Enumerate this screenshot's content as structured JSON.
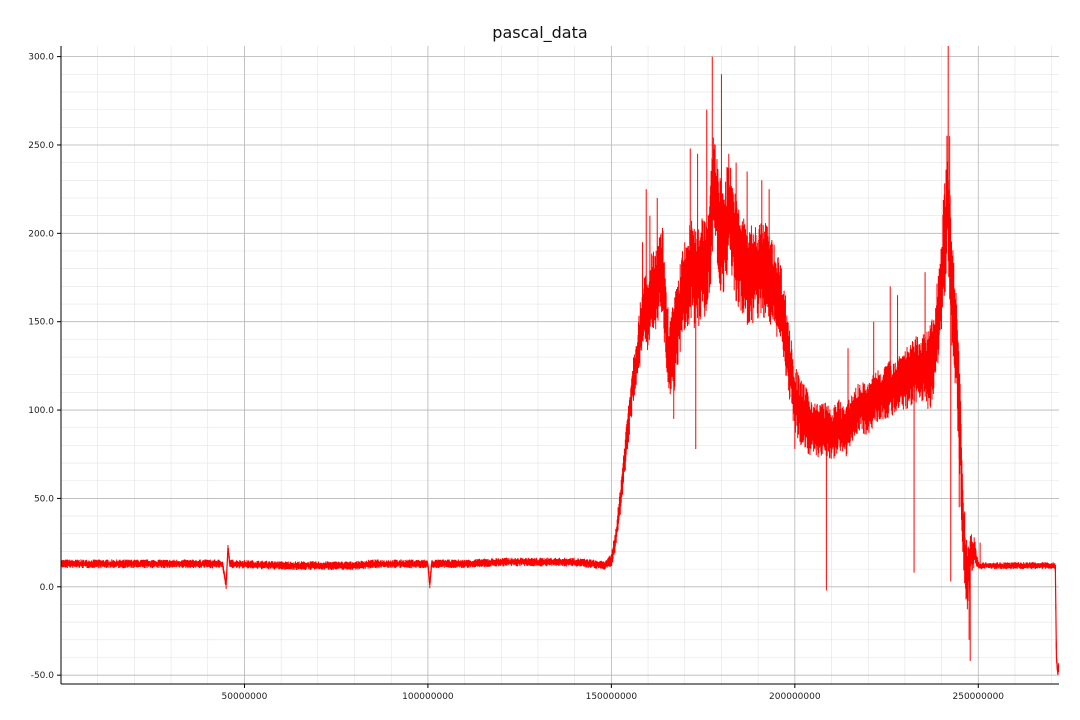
{
  "chart_data": {
    "type": "line",
    "title": "pascal_data",
    "xlabel": "",
    "ylabel": "",
    "xlim": [
      0,
      272000000
    ],
    "ylim": [
      -55,
      306
    ],
    "x_ticks": [
      50000000,
      100000000,
      150000000,
      200000000,
      250000000
    ],
    "x_tick_labels": [
      "50000000",
      "100000000",
      "150000000",
      "200000000",
      "250000000"
    ],
    "y_ticks": [
      -50,
      0,
      50,
      100,
      150,
      200,
      250,
      300
    ],
    "y_tick_labels": [
      "-50.0",
      "0.0",
      "50.0",
      "100.0",
      "150.0",
      "200.0",
      "250.0",
      "300.0"
    ],
    "grid": true,
    "minor_grid": true,
    "legend": "none",
    "series": [
      {
        "color": "#ff0000",
        "points": [
          [
            0,
            13
          ],
          [
            10000000,
            13
          ],
          [
            20000000,
            13
          ],
          [
            30000000,
            13
          ],
          [
            44000000,
            13
          ],
          [
            45000000,
            1
          ],
          [
            45500000,
            22
          ],
          [
            46000000,
            13
          ],
          [
            60000000,
            12
          ],
          [
            70000000,
            12
          ],
          [
            80000000,
            12
          ],
          [
            85000000,
            13
          ],
          [
            95000000,
            13
          ],
          [
            100000000,
            13
          ],
          [
            100500000,
            1
          ],
          [
            101000000,
            13
          ],
          [
            110000000,
            13
          ],
          [
            120000000,
            14
          ],
          [
            130000000,
            14
          ],
          [
            140000000,
            14
          ],
          [
            145000000,
            13
          ],
          [
            148000000,
            12
          ],
          [
            150000000,
            15
          ],
          [
            151000000,
            25
          ],
          [
            152000000,
            40
          ],
          [
            153000000,
            60
          ],
          [
            154000000,
            80
          ],
          [
            155000000,
            100
          ],
          [
            156000000,
            118
          ],
          [
            157000000,
            130
          ],
          [
            158000000,
            145
          ],
          [
            159000000,
            160
          ],
          [
            160000000,
            150
          ],
          [
            161000000,
            170
          ],
          [
            162000000,
            165
          ],
          [
            163000000,
            175
          ],
          [
            164000000,
            180
          ],
          [
            165000000,
            140
          ],
          [
            166000000,
            128
          ],
          [
            167000000,
            135
          ],
          [
            168000000,
            148
          ],
          [
            169000000,
            160
          ],
          [
            170000000,
            168
          ],
          [
            171000000,
            175
          ],
          [
            172000000,
            180
          ],
          [
            173000000,
            172
          ],
          [
            174000000,
            178
          ],
          [
            175000000,
            185
          ],
          [
            176000000,
            180
          ],
          [
            177000000,
            200
          ],
          [
            178000000,
            230
          ],
          [
            179000000,
            210
          ],
          [
            180000000,
            195
          ],
          [
            181000000,
            200
          ],
          [
            182000000,
            215
          ],
          [
            183000000,
            200
          ],
          [
            184000000,
            190
          ],
          [
            185000000,
            185
          ],
          [
            186000000,
            180
          ],
          [
            188000000,
            175
          ],
          [
            190000000,
            178
          ],
          [
            192000000,
            180
          ],
          [
            194000000,
            170
          ],
          [
            196000000,
            162
          ],
          [
            197000000,
            150
          ],
          [
            198000000,
            135
          ],
          [
            199000000,
            120
          ],
          [
            200000000,
            105
          ],
          [
            202000000,
            98
          ],
          [
            204000000,
            92
          ],
          [
            206000000,
            88
          ],
          [
            208000000,
            90
          ],
          [
            210000000,
            85
          ],
          [
            212000000,
            92
          ],
          [
            214000000,
            88
          ],
          [
            216000000,
            98
          ],
          [
            218000000,
            102
          ],
          [
            220000000,
            100
          ],
          [
            222000000,
            108
          ],
          [
            224000000,
            110
          ],
          [
            226000000,
            112
          ],
          [
            228000000,
            115
          ],
          [
            230000000,
            118
          ],
          [
            232000000,
            120
          ],
          [
            234000000,
            125
          ],
          [
            236000000,
            122
          ],
          [
            238000000,
            130
          ],
          [
            239000000,
            150
          ],
          [
            240000000,
            175
          ],
          [
            241000000,
            200
          ],
          [
            241500000,
            225
          ],
          [
            242000000,
            205
          ],
          [
            243000000,
            160
          ],
          [
            244000000,
            140
          ],
          [
            245000000,
            90
          ],
          [
            246000000,
            30
          ],
          [
            247000000,
            5
          ],
          [
            248000000,
            18
          ],
          [
            249000000,
            20
          ],
          [
            250000000,
            12
          ],
          [
            252000000,
            12
          ],
          [
            255000000,
            12
          ],
          [
            260000000,
            12
          ],
          [
            265000000,
            12
          ],
          [
            270000000,
            12
          ],
          [
            271000000,
            12
          ],
          [
            271300000,
            -40
          ],
          [
            271600000,
            -48
          ],
          [
            272000000,
            -45
          ]
        ],
        "spikes": [
          [
            158500000,
            195
          ],
          [
            159500000,
            225
          ],
          [
            160500000,
            210
          ],
          [
            162500000,
            220
          ],
          [
            171500000,
            248
          ],
          [
            173500000,
            245
          ],
          [
            176000000,
            270
          ],
          [
            177500000,
            300
          ],
          [
            180000000,
            290
          ],
          [
            182000000,
            245
          ],
          [
            184000000,
            240
          ],
          [
            187000000,
            235
          ],
          [
            191000000,
            230
          ],
          [
            193000000,
            225
          ],
          [
            241800000,
            306
          ],
          [
            242200000,
            255
          ],
          [
            244800000,
            45
          ],
          [
            247500000,
            -30
          ],
          [
            250500000,
            25
          ],
          [
            247800000,
            -42
          ],
          [
            208600000,
            -2
          ],
          [
            232500000,
            8
          ],
          [
            242500000,
            3
          ],
          [
            226000000,
            170
          ],
          [
            235500000,
            178
          ],
          [
            221500000,
            150
          ],
          [
            228000000,
            165
          ],
          [
            214500000,
            135
          ],
          [
            173000000,
            78
          ],
          [
            167000000,
            95
          ],
          [
            200000000,
            78
          ]
        ],
        "band_halfwidth": [
          [
            0,
            2.5
          ],
          [
            149000000,
            2.5
          ],
          [
            152000000,
            8
          ],
          [
            156000000,
            14
          ],
          [
            160000000,
            22
          ],
          [
            170000000,
            28
          ],
          [
            180000000,
            32
          ],
          [
            192000000,
            28
          ],
          [
            198000000,
            22
          ],
          [
            206000000,
            16
          ],
          [
            215000000,
            14
          ],
          [
            225000000,
            16
          ],
          [
            235000000,
            20
          ],
          [
            241000000,
            34
          ],
          [
            245000000,
            30
          ],
          [
            248000000,
            14
          ],
          [
            250000000,
            2
          ],
          [
            271000000,
            2
          ],
          [
            272000000,
            4
          ]
        ]
      }
    ]
  }
}
